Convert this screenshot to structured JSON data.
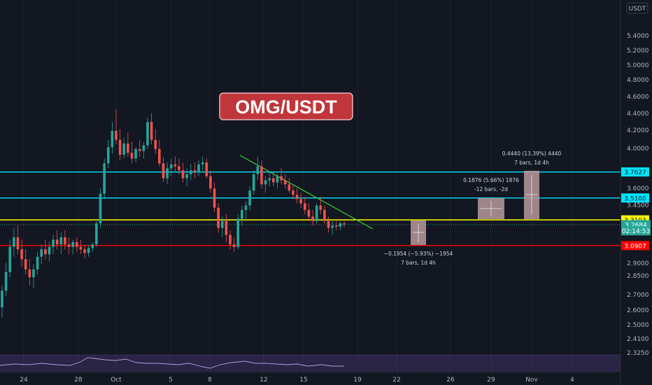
{
  "title": "OMG/USDT",
  "currency_label": "USDT",
  "colors": {
    "background": "#131722",
    "bull": "#26a69a",
    "bear": "#ef5350",
    "title_bg": "#c0363b",
    "cyan_line": "#00e5ff",
    "yellow_line": "#ffff00",
    "red_line": "#ff0000",
    "trend_line": "#38d13d"
  },
  "chart_data": {
    "type": "candlestick",
    "y_axis_scale": "log",
    "y_ticks": [
      "5.4000",
      "5.2000",
      "5.0000",
      "4.8000",
      "4.6000",
      "4.4000",
      "4.2000",
      "4.0000",
      "3.6000",
      "3.4500",
      "2.9000",
      "2.8500",
      "2.7000",
      "2.6000",
      "2.5000",
      "2.4100",
      "2.3250"
    ],
    "x_ticks": [
      "24",
      "28",
      "Oct",
      "5",
      "8",
      "12",
      "15",
      "19",
      "22",
      "26",
      "29",
      "Nov",
      "4"
    ],
    "candles": [
      [
        2.62,
        2.78,
        2.55,
        2.74
      ],
      [
        2.74,
        2.95,
        2.7,
        2.88
      ],
      [
        2.88,
        3.14,
        2.84,
        3.08
      ],
      [
        3.08,
        3.24,
        3.0,
        3.16
      ],
      [
        3.16,
        3.26,
        3.02,
        3.06
      ],
      [
        3.06,
        3.14,
        2.92,
        2.98
      ],
      [
        2.98,
        3.06,
        2.86,
        2.9
      ],
      [
        2.9,
        2.98,
        2.78,
        2.84
      ],
      [
        2.84,
        2.94,
        2.76,
        2.9
      ],
      [
        2.9,
        3.04,
        2.86,
        3.0
      ],
      [
        3.0,
        3.1,
        2.94,
        3.06
      ],
      [
        3.06,
        3.14,
        2.98,
        3.02
      ],
      [
        3.02,
        3.12,
        2.96,
        3.08
      ],
      [
        3.08,
        3.18,
        3.02,
        3.14
      ],
      [
        3.14,
        3.22,
        3.06,
        3.1
      ],
      [
        3.1,
        3.2,
        3.02,
        3.16
      ],
      [
        3.16,
        3.22,
        3.06,
        3.1
      ],
      [
        3.1,
        3.16,
        3.02,
        3.08
      ],
      [
        3.08,
        3.14,
        3.02,
        3.12
      ],
      [
        3.12,
        3.16,
        3.04,
        3.08
      ],
      [
        3.08,
        3.14,
        3.02,
        3.06
      ],
      [
        3.06,
        3.1,
        2.99,
        3.03
      ],
      [
        3.03,
        3.1,
        3.0,
        3.07
      ],
      [
        3.07,
        3.12,
        3.04,
        3.1
      ],
      [
        3.1,
        3.3,
        3.08,
        3.28
      ],
      [
        3.28,
        3.6,
        3.24,
        3.55
      ],
      [
        3.55,
        3.9,
        3.5,
        3.85
      ],
      [
        3.85,
        4.1,
        3.8,
        4.02
      ],
      [
        4.02,
        4.3,
        3.95,
        4.2
      ],
      [
        4.2,
        4.45,
        4.05,
        4.1
      ],
      [
        4.1,
        4.22,
        3.88,
        3.94
      ],
      [
        3.94,
        4.12,
        3.9,
        4.06
      ],
      [
        4.06,
        4.18,
        3.92,
        3.96
      ],
      [
        3.96,
        4.08,
        3.85,
        3.9
      ],
      [
        3.9,
        4.02,
        3.86,
        4.0
      ],
      [
        4.0,
        4.1,
        3.92,
        3.98
      ],
      [
        3.98,
        4.08,
        3.9,
        4.04
      ],
      [
        4.04,
        4.35,
        4.0,
        4.3
      ],
      [
        4.3,
        4.4,
        4.05,
        4.1
      ],
      [
        4.1,
        4.22,
        3.95,
        4.0
      ],
      [
        4.0,
        4.1,
        3.82,
        3.85
      ],
      [
        3.85,
        3.92,
        3.66,
        3.7
      ],
      [
        3.7,
        3.86,
        3.64,
        3.8
      ],
      [
        3.8,
        3.9,
        3.72,
        3.84
      ],
      [
        3.84,
        3.92,
        3.76,
        3.82
      ],
      [
        3.82,
        3.9,
        3.74,
        3.78
      ],
      [
        3.78,
        3.86,
        3.66,
        3.7
      ],
      [
        3.7,
        3.8,
        3.62,
        3.74
      ],
      [
        3.74,
        3.84,
        3.68,
        3.78
      ],
      [
        3.78,
        3.86,
        3.7,
        3.76
      ],
      [
        3.76,
        3.88,
        3.72,
        3.84
      ],
      [
        3.84,
        3.92,
        3.76,
        3.86
      ],
      [
        3.86,
        3.9,
        3.7,
        3.72
      ],
      [
        3.72,
        3.78,
        3.56,
        3.6
      ],
      [
        3.6,
        3.66,
        3.38,
        3.42
      ],
      [
        3.42,
        3.46,
        3.2,
        3.24
      ],
      [
        3.24,
        3.34,
        3.16,
        3.3
      ],
      [
        3.3,
        3.36,
        3.12,
        3.18
      ],
      [
        3.18,
        3.22,
        3.06,
        3.1
      ],
      [
        3.1,
        3.16,
        3.04,
        3.08
      ],
      [
        3.08,
        3.36,
        3.06,
        3.32
      ],
      [
        3.32,
        3.44,
        3.26,
        3.4
      ],
      [
        3.4,
        3.48,
        3.32,
        3.44
      ],
      [
        3.44,
        3.62,
        3.4,
        3.58
      ],
      [
        3.58,
        3.78,
        3.54,
        3.74
      ],
      [
        3.74,
        3.92,
        3.68,
        3.82
      ],
      [
        3.82,
        3.88,
        3.6,
        3.64
      ],
      [
        3.64,
        3.72,
        3.56,
        3.68
      ],
      [
        3.68,
        3.76,
        3.62,
        3.7
      ],
      [
        3.7,
        3.76,
        3.62,
        3.66
      ],
      [
        3.66,
        3.74,
        3.6,
        3.72
      ],
      [
        3.72,
        3.8,
        3.64,
        3.68
      ],
      [
        3.68,
        3.74,
        3.6,
        3.64
      ],
      [
        3.64,
        3.7,
        3.56,
        3.58
      ],
      [
        3.58,
        3.64,
        3.5,
        3.54
      ],
      [
        3.54,
        3.6,
        3.46,
        3.5
      ],
      [
        3.5,
        3.56,
        3.42,
        3.46
      ],
      [
        3.46,
        3.52,
        3.36,
        3.4
      ],
      [
        3.4,
        3.46,
        3.3,
        3.34
      ],
      [
        3.34,
        3.4,
        3.26,
        3.3
      ],
      [
        3.3,
        3.46,
        3.28,
        3.44
      ],
      [
        3.44,
        3.52,
        3.36,
        3.4
      ],
      [
        3.4,
        3.44,
        3.28,
        3.3
      ],
      [
        3.3,
        3.34,
        3.2,
        3.24
      ],
      [
        3.24,
        3.3,
        3.18,
        3.26
      ],
      [
        3.26,
        3.3,
        3.22,
        3.25
      ],
      [
        3.25,
        3.3,
        3.22,
        3.28
      ],
      [
        3.28,
        3.3,
        3.24,
        3.27
      ]
    ],
    "horizontal_levels": [
      {
        "label": "3.7627",
        "value": 3.7627,
        "color": "#00e5ff"
      },
      {
        "label": "3.5100",
        "value": 3.51,
        "color": "#00e5ff"
      },
      {
        "label": "3.3103",
        "value": 3.3103,
        "color": "#ffff00"
      },
      {
        "label": "3.0907",
        "value": 3.0907,
        "color": "#ff0000"
      }
    ],
    "price_tags": [
      {
        "label": "3.2684",
        "value": 3.2684
      },
      {
        "label": "02:14:53",
        "value": 3.215
      }
    ],
    "measure_annotations": [
      {
        "line1": "0.4440 (13.39%) 4440",
        "line2": "7 bars, 1d 4h"
      },
      {
        "line1": "0.1876 (5.66%) 1876",
        "line2": "-12 bars, -2d"
      },
      {
        "line1": "−0.1954 (−5.93%) −1954",
        "line2": "7 bars, 1d 4h"
      }
    ]
  }
}
